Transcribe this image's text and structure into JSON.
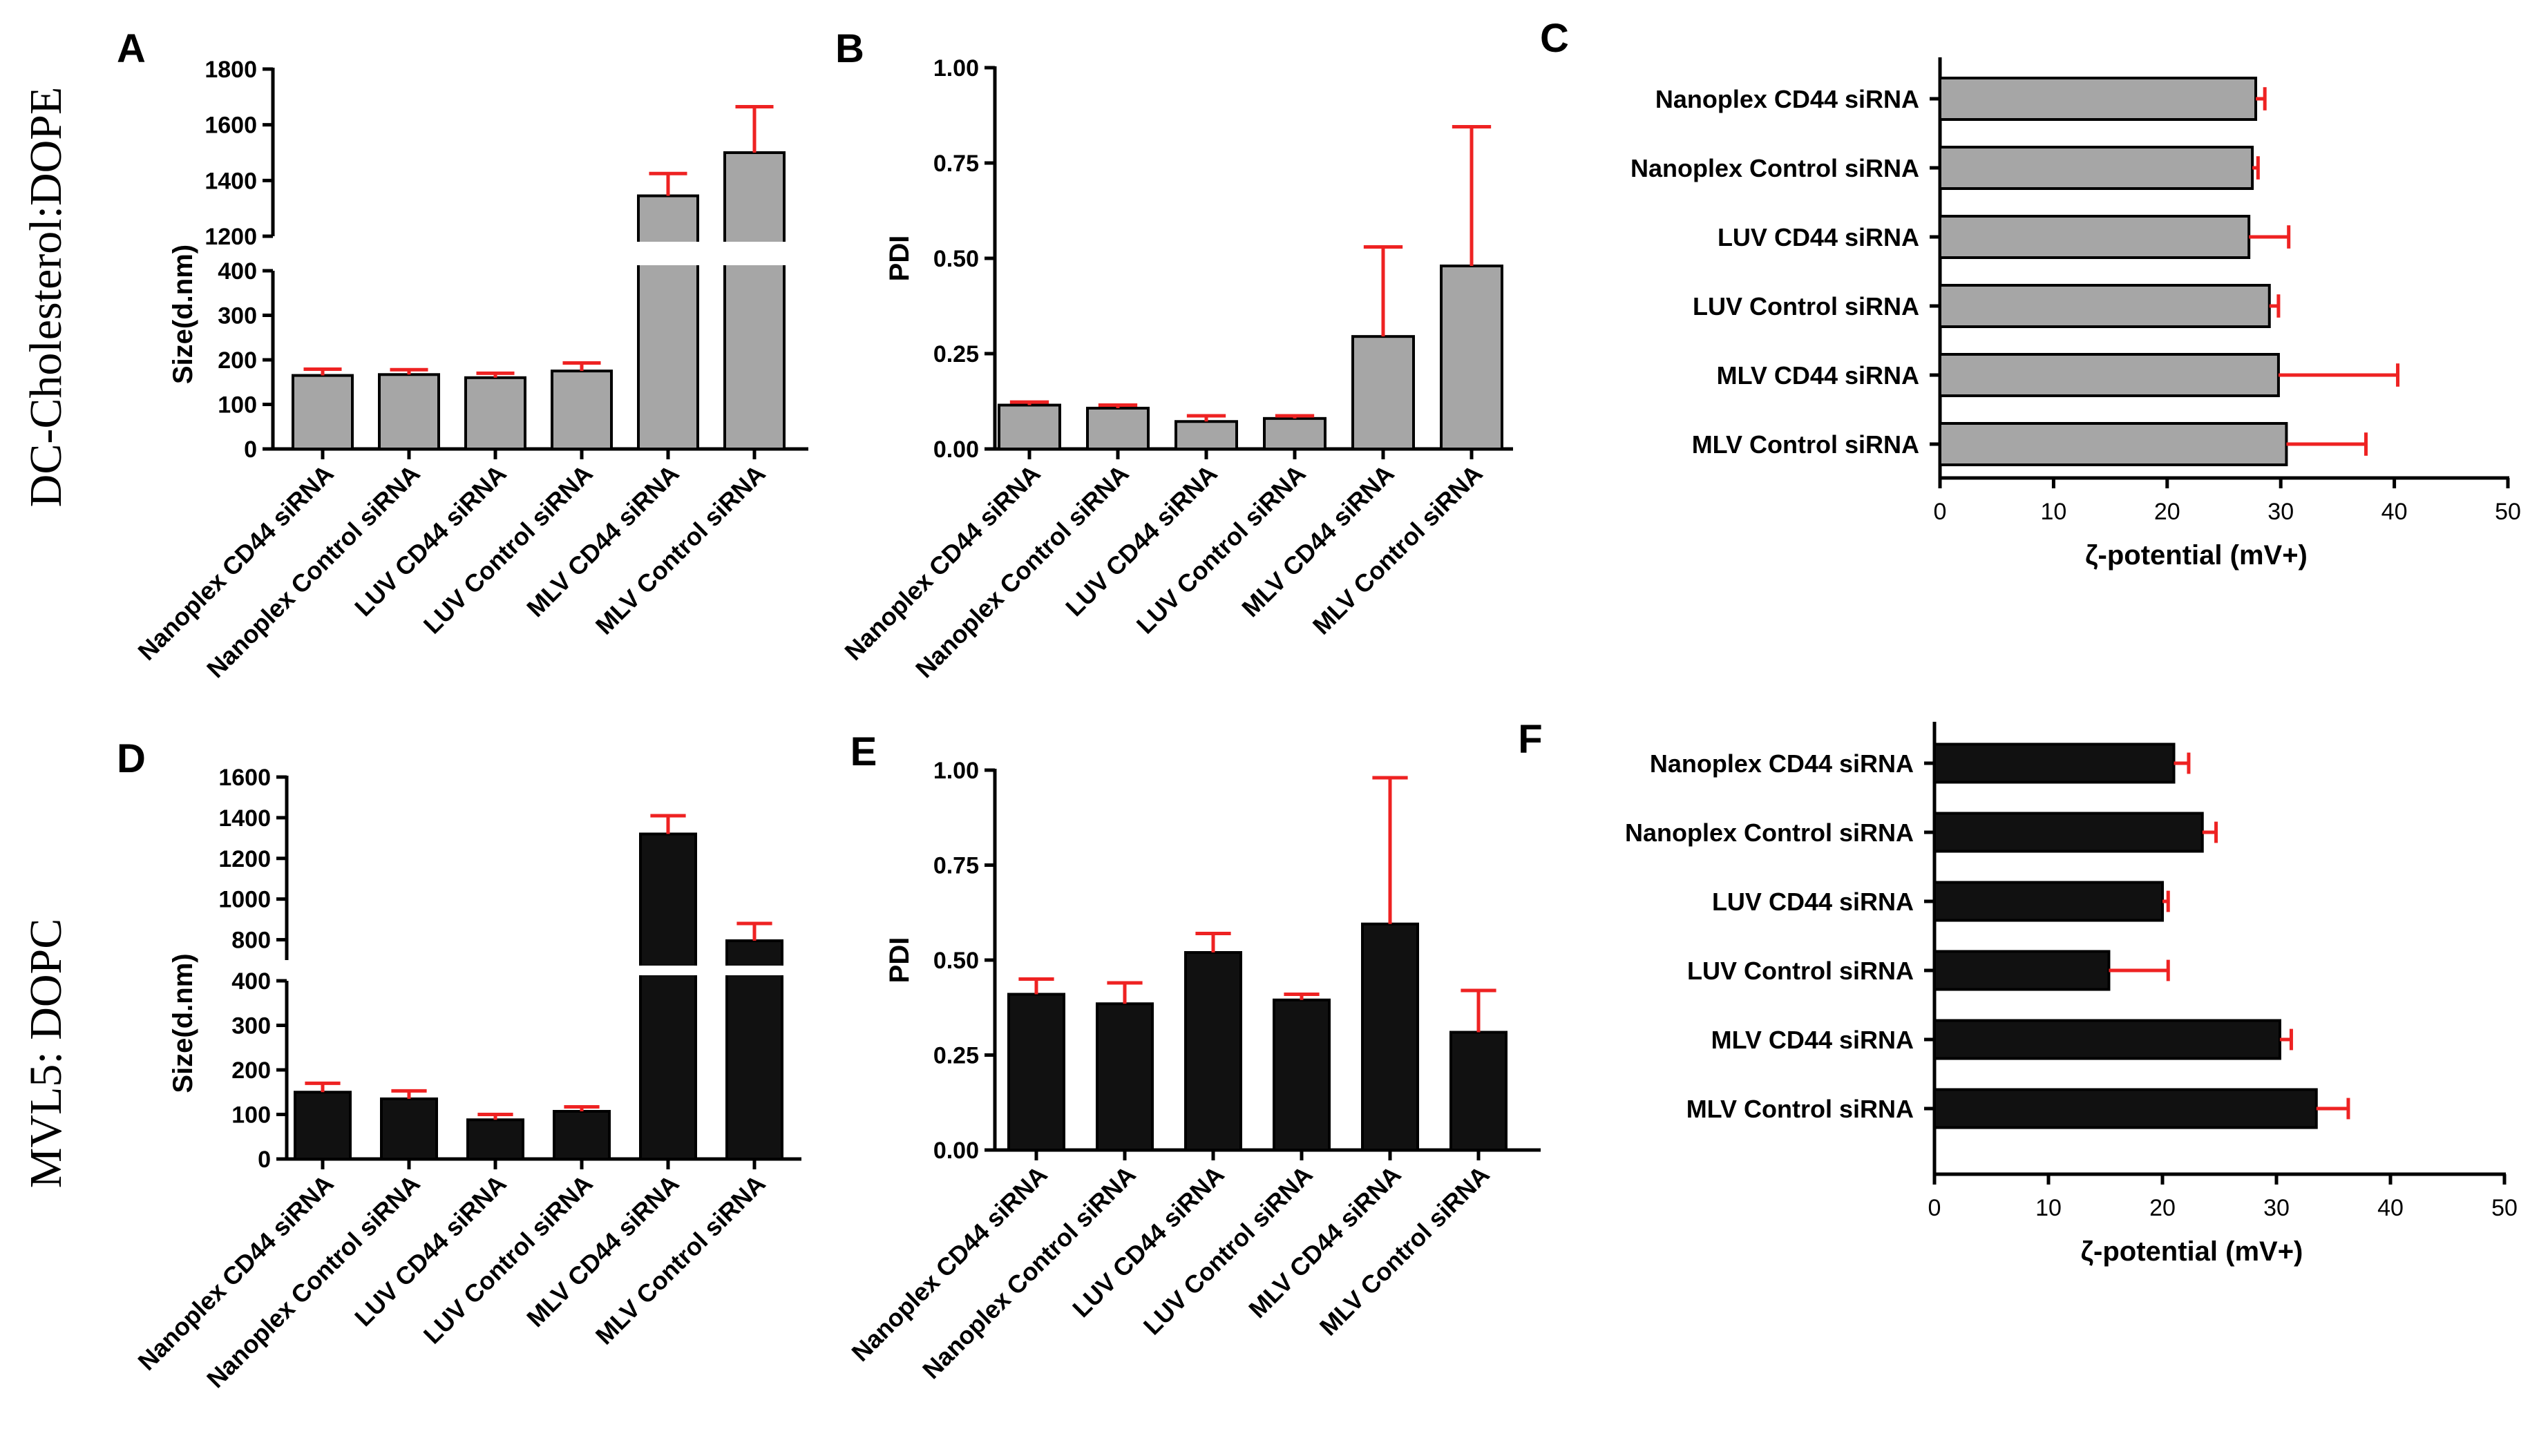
{
  "row_labels": [
    "DC-Cholesterol:DOPE",
    "MVL5: DOPC"
  ],
  "colors": {
    "bar_gray": "#a6a6a6",
    "bar_black": "#111111",
    "error": "#ee2222",
    "axis": "#000000"
  },
  "chart_data": [
    {
      "panel": "A",
      "type": "bar",
      "orientation": "vertical",
      "broken_axis": true,
      "ylabel": "Size(d.nm)",
      "categories": [
        "Nanoplex CD44 siRNA",
        "Nanoplex Control siRNA",
        "LUV CD44 siRNA",
        "LUV Control siRNA",
        "MLV CD44 siRNA",
        "MLV Control siRNA"
      ],
      "values": [
        165,
        167,
        160,
        175,
        1345,
        1500
      ],
      "errors": [
        14,
        11,
        10,
        18,
        80,
        165
      ],
      "lower_ylim": [
        0,
        400
      ],
      "lower_ticks": [
        "0",
        "100",
        "200",
        "300",
        "400"
      ],
      "upper_ylim": [
        1200,
        1800
      ],
      "upper_ticks": [
        "1200",
        "1400",
        "1600",
        "1800"
      ],
      "bar_color": "gray"
    },
    {
      "panel": "B",
      "type": "bar",
      "orientation": "vertical",
      "ylabel": "PDI",
      "categories": [
        "Nanoplex CD44 siRNA",
        "Nanoplex Control siRNA",
        "LUV CD44 siRNA",
        "LUV Control siRNA",
        "MLV CD44 siRNA",
        "MLV Control siRNA"
      ],
      "values": [
        0.115,
        0.107,
        0.072,
        0.08,
        0.295,
        0.48
      ],
      "errors": [
        0.008,
        0.008,
        0.015,
        0.007,
        0.235,
        0.365
      ],
      "ylim": [
        0,
        1
      ],
      "ticks": [
        "0.00",
        "0.25",
        "0.50",
        "0.75",
        "1.00"
      ],
      "bar_color": "gray"
    },
    {
      "panel": "C",
      "type": "bar",
      "orientation": "horizontal",
      "xlabel": "ζ-potential (mV+)",
      "categories": [
        "Nanoplex CD44 siRNA",
        "Nanoplex Control siRNA",
        "LUV CD44 siRNA",
        "LUV Control siRNA",
        "MLV CD44 siRNA",
        "MLV Control siRNA"
      ],
      "values": [
        27.8,
        27.5,
        27.2,
        29.0,
        29.8,
        30.5
      ],
      "errors": [
        0.8,
        0.5,
        3.5,
        0.8,
        10.5,
        7.0
      ],
      "xlim": [
        0,
        50
      ],
      "ticks": [
        "0",
        "10",
        "20",
        "30",
        "40",
        "50"
      ],
      "bar_color": "gray"
    },
    {
      "panel": "D",
      "type": "bar",
      "orientation": "vertical",
      "broken_axis": true,
      "ylabel": "Size(d.nm)",
      "categories": [
        "Nanoplex CD44 siRNA",
        "Nanoplex Control siRNA",
        "LUV CD44 siRNA",
        "LUV Control siRNA",
        "MLV CD44 siRNA",
        "MLV Control siRNA"
      ],
      "values": [
        150,
        135,
        88,
        107,
        1320,
        795
      ],
      "errors": [
        20,
        18,
        12,
        10,
        90,
        85
      ],
      "lower_ylim": [
        0,
        400
      ],
      "lower_ticks": [
        "0",
        "100",
        "200",
        "300",
        "400"
      ],
      "upper_ylim": [
        700,
        1600
      ],
      "upper_ticks": [
        "800",
        "1000",
        "1200",
        "1400",
        "1600"
      ],
      "bar_color": "black"
    },
    {
      "panel": "E",
      "type": "bar",
      "orientation": "vertical",
      "ylabel": "PDI",
      "categories": [
        "Nanoplex CD44 siRNA",
        "Nanoplex Control siRNA",
        "LUV CD44 siRNA",
        "LUV Control siRNA",
        "MLV CD44 siRNA",
        "MLV Control siRNA"
      ],
      "values": [
        0.41,
        0.385,
        0.52,
        0.395,
        0.595,
        0.31
      ],
      "errors": [
        0.04,
        0.055,
        0.05,
        0.015,
        0.385,
        0.11
      ],
      "ylim": [
        0,
        1
      ],
      "ticks": [
        "0.00",
        "0.25",
        "0.50",
        "0.75",
        "1.00"
      ],
      "bar_color": "black"
    },
    {
      "panel": "F",
      "type": "bar",
      "orientation": "horizontal",
      "xlabel": "ζ-potential (mV+)",
      "categories": [
        "Nanoplex CD44 siRNA",
        "Nanoplex Control siRNA",
        "LUV CD44 siRNA",
        "LUV Control siRNA",
        "MLV CD44 siRNA",
        "MLV Control siRNA"
      ],
      "values": [
        21.0,
        23.5,
        20.0,
        15.3,
        30.3,
        33.5
      ],
      "errors": [
        1.3,
        1.2,
        0.5,
        5.2,
        1.0,
        2.8
      ],
      "xlim": [
        0,
        50
      ],
      "ticks": [
        "0",
        "10",
        "20",
        "30",
        "40",
        "50"
      ],
      "bar_color": "black"
    }
  ]
}
